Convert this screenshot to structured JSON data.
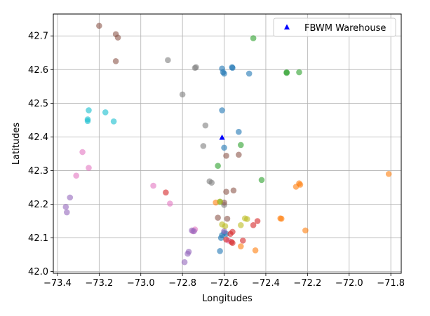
{
  "chart_data": {
    "type": "scatter",
    "xlabel": "Longitudes",
    "ylabel": "Latitudes",
    "xlim": [
      -73.42,
      -71.75
    ],
    "ylim": [
      41.995,
      42.765
    ],
    "grid": true,
    "x_ticks": [
      -73.4,
      -73.2,
      -73.0,
      -72.8,
      -72.6,
      -72.4,
      -72.2,
      -72.0,
      -71.8
    ],
    "x_tick_labels": [
      "−73.4",
      "−73.2",
      "−73.0",
      "−72.8",
      "−72.6",
      "−72.4",
      "−72.2",
      "−72.0",
      "−71.8"
    ],
    "y_ticks": [
      42.0,
      42.1,
      42.2,
      42.3,
      42.4,
      42.5,
      42.6,
      42.7
    ],
    "y_tick_labels": [
      "42.0",
      "42.1",
      "42.2",
      "42.3",
      "42.4",
      "42.5",
      "42.6",
      "42.7"
    ],
    "legend": {
      "placement": "top-right",
      "entries": [
        {
          "label": "FBWM Warehouse",
          "marker": "triangle",
          "color": "#0000ff"
        }
      ]
    },
    "warehouse": {
      "x": -72.61,
      "y": 42.398,
      "color": "#0000ff"
    },
    "colors": {
      "blue": "#1f77b4",
      "orange": "#ff7f0e",
      "green": "#2ca02c",
      "red": "#d62728",
      "purple": "#9467bd",
      "brown": "#8c564b",
      "pink": "#e377c2",
      "gray": "#7f7f7f",
      "olive": "#bcbd22",
      "cyan": "#17becf"
    },
    "points": [
      {
        "x": -73.2,
        "y": 42.73,
        "c": "brown"
      },
      {
        "x": -73.12,
        "y": 42.705,
        "c": "brown"
      },
      {
        "x": -73.11,
        "y": 42.695,
        "c": "brown"
      },
      {
        "x": -73.12,
        "y": 42.625,
        "c": "brown"
      },
      {
        "x": -72.87,
        "y": 42.628,
        "c": "gray"
      },
      {
        "x": -72.74,
        "y": 42.605,
        "c": "gray"
      },
      {
        "x": -72.735,
        "y": 42.607,
        "c": "gray"
      },
      {
        "x": -72.8,
        "y": 42.526,
        "c": "gray"
      },
      {
        "x": -72.69,
        "y": 42.434,
        "c": "gray"
      },
      {
        "x": -72.7,
        "y": 42.373,
        "c": "gray"
      },
      {
        "x": -72.67,
        "y": 42.268,
        "c": "gray"
      },
      {
        "x": -72.66,
        "y": 42.264,
        "c": "gray"
      },
      {
        "x": -72.6,
        "y": 42.198,
        "c": "gray"
      },
      {
        "x": -72.61,
        "y": 42.603,
        "c": "blue"
      },
      {
        "x": -72.6,
        "y": 42.588,
        "c": "blue"
      },
      {
        "x": -72.605,
        "y": 42.592,
        "c": "blue"
      },
      {
        "x": -72.56,
        "y": 42.605,
        "c": "blue"
      },
      {
        "x": -72.562,
        "y": 42.607,
        "c": "blue"
      },
      {
        "x": -72.48,
        "y": 42.588,
        "c": "blue"
      },
      {
        "x": -72.61,
        "y": 42.479,
        "c": "blue"
      },
      {
        "x": -72.53,
        "y": 42.415,
        "c": "blue"
      },
      {
        "x": -72.6,
        "y": 42.368,
        "c": "blue"
      },
      {
        "x": -72.62,
        "y": 42.061,
        "c": "blue"
      },
      {
        "x": -72.61,
        "y": 42.108,
        "c": "blue"
      },
      {
        "x": -72.6,
        "y": 42.115,
        "c": "blue"
      },
      {
        "x": -72.59,
        "y": 42.112,
        "c": "blue"
      },
      {
        "x": -72.615,
        "y": 42.1,
        "c": "blue"
      },
      {
        "x": -72.46,
        "y": 42.693,
        "c": "green"
      },
      {
        "x": -72.3,
        "y": 42.59,
        "c": "green"
      },
      {
        "x": -72.3,
        "y": 42.592,
        "c": "green"
      },
      {
        "x": -72.24,
        "y": 42.592,
        "c": "green"
      },
      {
        "x": -72.52,
        "y": 42.376,
        "c": "green"
      },
      {
        "x": -72.63,
        "y": 42.314,
        "c": "green"
      },
      {
        "x": -72.42,
        "y": 42.272,
        "c": "green"
      },
      {
        "x": -72.62,
        "y": 42.207,
        "c": "green"
      },
      {
        "x": -72.59,
        "y": 42.344,
        "c": "brown"
      },
      {
        "x": -72.53,
        "y": 42.347,
        "c": "brown"
      },
      {
        "x": -72.59,
        "y": 42.237,
        "c": "brown"
      },
      {
        "x": -72.555,
        "y": 42.241,
        "c": "brown"
      },
      {
        "x": -72.6,
        "y": 42.205,
        "c": "brown"
      },
      {
        "x": -72.63,
        "y": 42.16,
        "c": "brown"
      },
      {
        "x": -72.585,
        "y": 42.157,
        "c": "brown"
      },
      {
        "x": -73.25,
        "y": 42.479,
        "c": "cyan"
      },
      {
        "x": -73.255,
        "y": 42.452,
        "c": "cyan"
      },
      {
        "x": -73.255,
        "y": 42.447,
        "c": "cyan"
      },
      {
        "x": -73.17,
        "y": 42.473,
        "c": "cyan"
      },
      {
        "x": -73.13,
        "y": 42.446,
        "c": "cyan"
      },
      {
        "x": -73.28,
        "y": 42.355,
        "c": "pink"
      },
      {
        "x": -73.31,
        "y": 42.285,
        "c": "pink"
      },
      {
        "x": -73.25,
        "y": 42.308,
        "c": "pink"
      },
      {
        "x": -72.94,
        "y": 42.255,
        "c": "pink"
      },
      {
        "x": -72.86,
        "y": 42.202,
        "c": "pink"
      },
      {
        "x": -72.74,
        "y": 42.125,
        "c": "pink"
      },
      {
        "x": -72.75,
        "y": 42.12,
        "c": "pink"
      },
      {
        "x": -72.58,
        "y": 42.092,
        "c": "pink"
      },
      {
        "x": -73.34,
        "y": 42.22,
        "c": "purple"
      },
      {
        "x": -73.36,
        "y": 42.192,
        "c": "purple"
      },
      {
        "x": -73.355,
        "y": 42.176,
        "c": "purple"
      },
      {
        "x": -72.745,
        "y": 42.12,
        "c": "purple"
      },
      {
        "x": -72.755,
        "y": 42.122,
        "c": "purple"
      },
      {
        "x": -72.77,
        "y": 42.059,
        "c": "purple"
      },
      {
        "x": -72.775,
        "y": 42.053,
        "c": "purple"
      },
      {
        "x": -72.79,
        "y": 42.028,
        "c": "purple"
      },
      {
        "x": -72.6,
        "y": 42.12,
        "c": "purple"
      },
      {
        "x": -72.88,
        "y": 42.235,
        "c": "red"
      },
      {
        "x": -72.44,
        "y": 42.15,
        "c": "red"
      },
      {
        "x": -72.46,
        "y": 42.138,
        "c": "red"
      },
      {
        "x": -72.51,
        "y": 42.092,
        "c": "red"
      },
      {
        "x": -72.56,
        "y": 42.118,
        "c": "red"
      },
      {
        "x": -72.57,
        "y": 42.112,
        "c": "red"
      },
      {
        "x": -72.565,
        "y": 42.088,
        "c": "red"
      },
      {
        "x": -72.56,
        "y": 42.085,
        "c": "red"
      },
      {
        "x": -72.59,
        "y": 42.095,
        "c": "red"
      },
      {
        "x": -71.81,
        "y": 42.29,
        "c": "orange"
      },
      {
        "x": -72.24,
        "y": 42.262,
        "c": "orange"
      },
      {
        "x": -72.235,
        "y": 42.258,
        "c": "orange"
      },
      {
        "x": -72.255,
        "y": 42.252,
        "c": "orange"
      },
      {
        "x": -72.33,
        "y": 42.158,
        "c": "orange"
      },
      {
        "x": -72.325,
        "y": 42.157,
        "c": "orange"
      },
      {
        "x": -72.21,
        "y": 42.122,
        "c": "orange"
      },
      {
        "x": -72.64,
        "y": 42.205,
        "c": "orange"
      },
      {
        "x": -72.52,
        "y": 42.075,
        "c": "orange"
      },
      {
        "x": -72.45,
        "y": 42.063,
        "c": "orange"
      },
      {
        "x": -72.5,
        "y": 42.158,
        "c": "olive"
      },
      {
        "x": -72.49,
        "y": 42.156,
        "c": "olive"
      },
      {
        "x": -72.52,
        "y": 42.138,
        "c": "olive"
      },
      {
        "x": -72.61,
        "y": 42.14,
        "c": "olive"
      },
      {
        "x": -72.62,
        "y": 42.208,
        "c": "olive"
      },
      {
        "x": -72.595,
        "y": 42.135,
        "c": "olive"
      }
    ]
  }
}
